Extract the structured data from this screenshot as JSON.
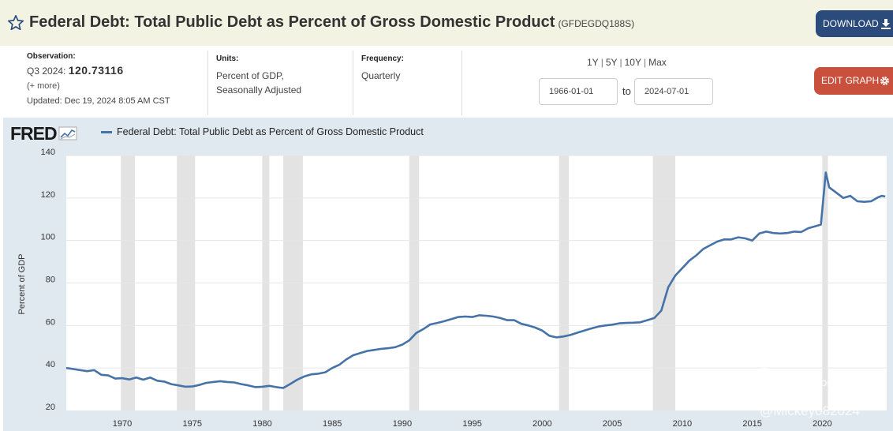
{
  "header": {
    "title": "Federal Debt: Total Public Debt as Percent of Gross Domestic Product",
    "series_id": "(GFDEGDQ188S)",
    "download_label": "DOWNLOAD"
  },
  "observation": {
    "label": "Observation:",
    "period": "Q3 2024:",
    "value": "120.73116",
    "more": "(+ more)",
    "updated": "Updated: Dec 19, 2024 8:05 AM CST"
  },
  "units": {
    "label": "Units:",
    "line1": "Percent of GDP,",
    "line2": "Seasonally Adjusted"
  },
  "frequency": {
    "label": "Frequency:",
    "value": "Quarterly"
  },
  "range": {
    "links": [
      "1Y",
      "5Y",
      "10Y",
      "Max"
    ],
    "start": "1966-01-01",
    "to": "to",
    "end": "2024-07-01"
  },
  "edit_label": "EDIT GRAPH",
  "logo": "FRED",
  "watermark": {
    "community": "Tiger Community",
    "handle": "@Mickey082024"
  },
  "colors": {
    "line": "#4572a7",
    "recession": "#e3e3e3",
    "plot_bg": "#ffffff",
    "chart_bg": "#e1e9f0"
  },
  "chart_data": {
    "type": "line",
    "title": "Federal Debt: Total Public Debt as Percent of Gross Domestic Product",
    "xlabel": "",
    "ylabel": "Percent of GDP",
    "xlim": [
      1966.0,
      2024.6
    ],
    "ylim": [
      20,
      140
    ],
    "yticks": [
      20,
      40,
      60,
      80,
      100,
      120,
      140
    ],
    "xticks": [
      1970,
      1975,
      1980,
      1985,
      1990,
      1995,
      2000,
      2005,
      2010,
      2015,
      2020
    ],
    "recessions": [
      [
        1969.9,
        1970.9
      ],
      [
        1973.9,
        1975.2
      ],
      [
        1980.0,
        1980.5
      ],
      [
        1981.5,
        1982.9
      ],
      [
        1990.5,
        1991.2
      ],
      [
        2001.2,
        2001.9
      ],
      [
        2007.9,
        2009.5
      ],
      [
        2020.0,
        2020.4
      ]
    ],
    "series": [
      {
        "name": "Federal Debt: Total Public Debt as Percent of Gross Domestic Product",
        "x": [
          1966.0,
          1966.5,
          1967.0,
          1967.5,
          1968.0,
          1968.5,
          1969.0,
          1969.5,
          1970.0,
          1970.5,
          1971.0,
          1971.5,
          1972.0,
          1972.5,
          1973.0,
          1973.5,
          1974.0,
          1974.5,
          1975.0,
          1975.5,
          1976.0,
          1976.5,
          1977.0,
          1977.5,
          1978.0,
          1978.5,
          1979.0,
          1979.5,
          1980.0,
          1980.5,
          1981.0,
          1981.5,
          1982.0,
          1982.5,
          1983.0,
          1983.5,
          1984.0,
          1984.5,
          1985.0,
          1985.5,
          1986.0,
          1986.5,
          1987.0,
          1987.5,
          1988.0,
          1988.5,
          1989.0,
          1989.5,
          1990.0,
          1990.5,
          1991.0,
          1991.5,
          1992.0,
          1992.5,
          1993.0,
          1993.5,
          1994.0,
          1994.5,
          1995.0,
          1995.5,
          1996.0,
          1996.5,
          1997.0,
          1997.5,
          1998.0,
          1998.5,
          1999.0,
          1999.5,
          2000.0,
          2000.5,
          2001.0,
          2001.5,
          2002.0,
          2002.5,
          2003.0,
          2003.5,
          2004.0,
          2004.5,
          2005.0,
          2005.5,
          2006.0,
          2006.5,
          2007.0,
          2007.5,
          2008.0,
          2008.5,
          2009.0,
          2009.5,
          2010.0,
          2010.5,
          2011.0,
          2011.5,
          2012.0,
          2012.5,
          2013.0,
          2013.5,
          2014.0,
          2014.5,
          2015.0,
          2015.5,
          2016.0,
          2016.5,
          2017.0,
          2017.5,
          2018.0,
          2018.5,
          2019.0,
          2019.5,
          2019.9,
          2020.25,
          2020.5,
          2021.0,
          2021.5,
          2022.0,
          2022.5,
          2023.0,
          2023.5,
          2024.0,
          2024.25,
          2024.5
        ],
        "values": [
          40.0,
          39.5,
          39.0,
          38.5,
          39.0,
          36.8,
          36.5,
          35.0,
          35.2,
          34.6,
          35.5,
          34.5,
          35.5,
          34.0,
          33.6,
          32.4,
          31.8,
          31.2,
          31.3,
          32.0,
          33.0,
          33.4,
          33.8,
          33.4,
          33.2,
          32.4,
          31.8,
          31.0,
          31.2,
          31.6,
          31.0,
          30.6,
          32.5,
          34.5,
          36.0,
          37.0,
          37.3,
          38.0,
          40.0,
          41.5,
          44.0,
          46.0,
          47.0,
          48.0,
          48.5,
          49.0,
          49.3,
          49.8,
          51.0,
          53.0,
          56.5,
          58.3,
          60.5,
          61.2,
          62.0,
          63.0,
          64.0,
          64.2,
          64.0,
          64.8,
          64.6,
          64.2,
          63.5,
          62.5,
          62.5,
          60.8,
          60.0,
          59.0,
          57.6,
          55.2,
          54.4,
          54.8,
          55.5,
          56.6,
          57.6,
          58.6,
          59.5,
          60.0,
          60.4,
          61.0,
          61.2,
          61.3,
          61.5,
          62.5,
          63.5,
          67.0,
          78.0,
          83.5,
          87.0,
          90.5,
          93.0,
          96.0,
          97.8,
          99.5,
          100.5,
          100.5,
          101.5,
          101.0,
          100.0,
          103.3,
          104.2,
          103.5,
          103.3,
          103.5,
          104.2,
          104.0,
          105.8,
          106.7,
          107.5,
          132.0,
          125.0,
          122.5,
          120.0,
          121.0,
          118.5,
          118.2,
          118.5,
          120.4,
          121.0,
          120.73
        ]
      }
    ]
  }
}
